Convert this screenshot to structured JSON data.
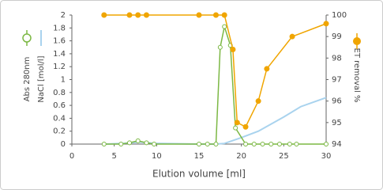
{
  "chart_data": {
    "type": "line",
    "x_label": "Elution volume [ml]",
    "xlim": [
      0,
      30
    ],
    "xticks": [
      0,
      5,
      10,
      15,
      20,
      25,
      30
    ],
    "ylim": [
      0,
      2
    ],
    "yticks": [
      0,
      0.2,
      0.4,
      0.6,
      0.8,
      1,
      1.2,
      1.4,
      1.6,
      1.8,
      2
    ],
    "y2lim": [
      94,
      100
    ],
    "y2ticks": [
      94,
      95,
      96,
      97,
      98,
      99,
      100
    ],
    "series": [
      {
        "name": "Abs 280nm",
        "color": "#7cb844",
        "marker": "open",
        "x": [
          3.8,
          5.8,
          6.8,
          7.8,
          8.8,
          9.7,
          15,
          16,
          17,
          17.5,
          18,
          18.7,
          19.3,
          20.5,
          21.5,
          22.5,
          23.5,
          24.5,
          25.7,
          26.5,
          30
        ],
        "values": [
          0,
          0,
          0.02,
          0.05,
          0.02,
          0,
          0,
          0,
          0,
          1.5,
          1.82,
          1.53,
          0.25,
          0,
          0,
          0,
          0,
          0,
          0,
          0,
          0
        ]
      },
      {
        "name": "NaCl [mol/l]",
        "color": "#a9d3ee",
        "marker": "none",
        "x": [
          4,
          6,
          8,
          10,
          15,
          17,
          18,
          20,
          22,
          25,
          27,
          30
        ],
        "values": [
          0,
          0.01,
          0.03,
          0.01,
          0,
          0,
          0.01,
          0.1,
          0.2,
          0.42,
          0.58,
          0.72
        ]
      },
      {
        "name": "ET removal %",
        "color": "#f0a500",
        "marker": "filled",
        "axis": "y2",
        "x": [
          3.8,
          6.8,
          7.8,
          8.8,
          15,
          17,
          18,
          19,
          19.5,
          20.5,
          22,
          23,
          26,
          30
        ],
        "values": [
          100,
          100,
          100,
          100,
          100,
          100,
          100,
          98.4,
          95,
          94.8,
          96,
          97.5,
          99,
          99.6
        ]
      }
    ]
  }
}
